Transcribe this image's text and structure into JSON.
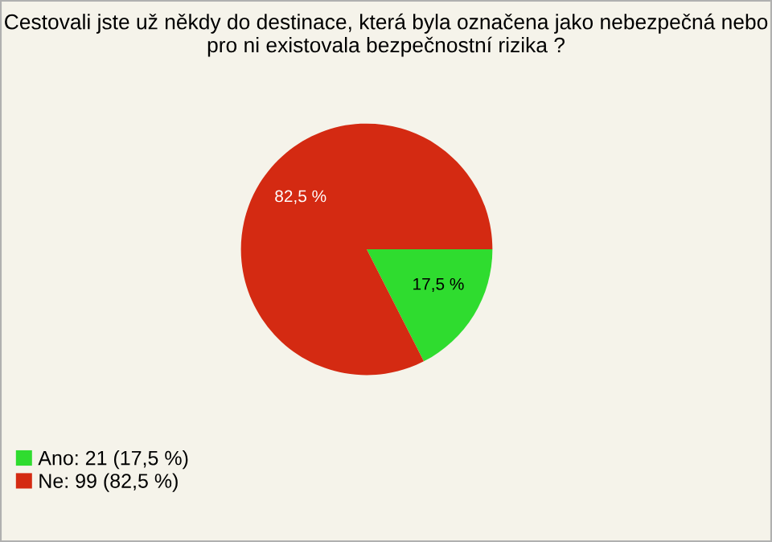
{
  "chart_data": {
    "type": "pie",
    "title": "Cestovali jste už někdy do destinace, která byla označena jako nebezpečná nebo pro ni existovala bezpečnostní rizika ?",
    "categories": [
      "Ano: 21 (17,5 %)",
      "Ne: 99 (82,5 %)"
    ],
    "values": [
      17.5,
      82.5
    ],
    "colors": [
      "#2fdc2f",
      "#d42a12"
    ],
    "value_labels": [
      "17,5 %",
      "82,5 %"
    ],
    "legend": "bottom left"
  }
}
